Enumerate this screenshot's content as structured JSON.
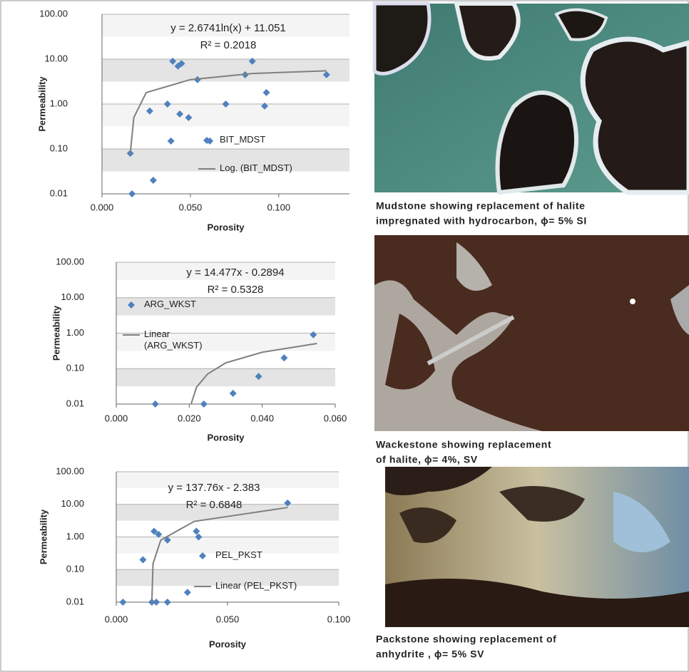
{
  "chart_data": [
    {
      "type": "scatter",
      "title": "y = 2.6741ln(x) + 11.051",
      "subtitle": "R² = 0.2018",
      "x_label": "Porosity",
      "y_label": "Permeability",
      "log_y": true,
      "grid": true,
      "xlim": [
        0,
        0.14
      ],
      "ylim": [
        0.01,
        100
      ],
      "xticks": [
        {
          "value": 0,
          "label": "0.000"
        },
        {
          "value": 0.05,
          "label": "0.050"
        },
        {
          "value": 0.1,
          "label": "0.100"
        }
      ],
      "yticks": [
        {
          "value": 0.01,
          "label": "0.01"
        },
        {
          "value": 0.1,
          "label": "0.10"
        },
        {
          "value": 1,
          "label": "1.00"
        },
        {
          "value": 10,
          "label": "10.00"
        },
        {
          "value": 100,
          "label": "100.00"
        }
      ],
      "series": [
        {
          "name": "BIT_MDST",
          "color": "#4f81bd",
          "mode": "markers",
          "x": [
            0.017,
            0.016,
            0.029,
            0.027,
            0.037,
            0.039,
            0.04,
            0.043,
            0.045,
            0.044,
            0.049,
            0.054,
            0.061,
            0.07,
            0.081,
            0.085,
            0.092,
            0.093,
            0.127
          ],
          "values": [
            0.01,
            0.08,
            0.02,
            0.7,
            1.0,
            0.15,
            9,
            7,
            8,
            0.6,
            0.5,
            3.5,
            0.15,
            1.0,
            4.5,
            9,
            0.9,
            1.8,
            4.5
          ]
        },
        {
          "name": "Log. (BIT_MDST)",
          "color": "#7f7f7f",
          "mode": "line",
          "x": [
            0.016,
            0.018,
            0.025,
            0.05,
            0.085,
            0.127
          ],
          "values": [
            0.08,
            0.5,
            1.8,
            3.5,
            4.8,
            5.5
          ]
        }
      ]
    },
    {
      "type": "scatter",
      "title": "y = 14.477x - 0.2894",
      "subtitle": "R² = 0.5328",
      "x_label": "Porosity",
      "y_label": "Permeability",
      "log_y": true,
      "grid": true,
      "xlim": [
        0,
        0.06
      ],
      "ylim": [
        0.01,
        100
      ],
      "xticks": [
        {
          "value": 0,
          "label": "0.000"
        },
        {
          "value": 0.02,
          "label": "0.020"
        },
        {
          "value": 0.04,
          "label": "0.040"
        },
        {
          "value": 0.06,
          "label": "0.060"
        }
      ],
      "yticks": [
        {
          "value": 0.01,
          "label": "0.01"
        },
        {
          "value": 0.1,
          "label": "0.10"
        },
        {
          "value": 1,
          "label": "1.00"
        },
        {
          "value": 10,
          "label": "10.00"
        },
        {
          "value": 100,
          "label": "100.00"
        }
      ],
      "series": [
        {
          "name": "ARG_WKST",
          "color": "#4f81bd",
          "mode": "markers",
          "x": [
            0.0107,
            0.024,
            0.032,
            0.039,
            0.046,
            0.054
          ],
          "values": [
            0.01,
            0.01,
            0.02,
            0.06,
            0.2,
            0.9
          ]
        },
        {
          "name": "Linear (ARG_WKST)",
          "color": "#7f7f7f",
          "mode": "line",
          "x": [
            0.0205,
            0.022,
            0.025,
            0.03,
            0.04,
            0.055
          ],
          "values": [
            0.01,
            0.03,
            0.07,
            0.145,
            0.29,
            0.51
          ]
        }
      ]
    },
    {
      "type": "scatter",
      "title": "y = 137.76x - 2.383",
      "subtitle": "R² = 0.6848",
      "x_label": "Porosity",
      "y_label": "Permeability",
      "log_y": true,
      "grid": true,
      "xlim": [
        0,
        0.1
      ],
      "ylim": [
        0.01,
        100
      ],
      "xticks": [
        {
          "value": 0,
          "label": "0.000"
        },
        {
          "value": 0.05,
          "label": "0.050"
        },
        {
          "value": 0.1,
          "label": "0.100"
        }
      ],
      "yticks": [
        {
          "value": 0.01,
          "label": "0.01"
        },
        {
          "value": 0.1,
          "label": "0.10"
        },
        {
          "value": 1,
          "label": "1.00"
        },
        {
          "value": 10,
          "label": "10.00"
        },
        {
          "value": 100,
          "label": "100.00"
        }
      ],
      "series": [
        {
          "name": "PEL_PKST",
          "color": "#4f81bd",
          "mode": "markers",
          "x": [
            0.003,
            0.012,
            0.017,
            0.019,
            0.016,
            0.018,
            0.023,
            0.023,
            0.036,
            0.037,
            0.032,
            0.077
          ],
          "values": [
            0.01,
            0.2,
            1.5,
            1.2,
            0.01,
            0.01,
            0.01,
            0.8,
            1.5,
            1.0,
            0.02,
            11
          ]
        },
        {
          "name": "Linear (PEL_PKST)",
          "color": "#7f7f7f",
          "mode": "line",
          "x": [
            0.016,
            0.0165,
            0.02,
            0.035,
            0.077
          ],
          "values": [
            0.01,
            0.15,
            0.8,
            3,
            8
          ]
        }
      ]
    }
  ],
  "photos": [
    {
      "caption": [
        "Mudstone showing replacement of halite",
        "impregnated with hydrocarbon, ϕ= 5%  SI"
      ]
    },
    {
      "caption": [
        "Wackestone showing replacement",
        "of halite, ϕ= 4%,  SV"
      ]
    },
    {
      "caption": [
        "Packstone showing replacement of",
        "anhydrite , ϕ= 5%  SV"
      ]
    }
  ]
}
